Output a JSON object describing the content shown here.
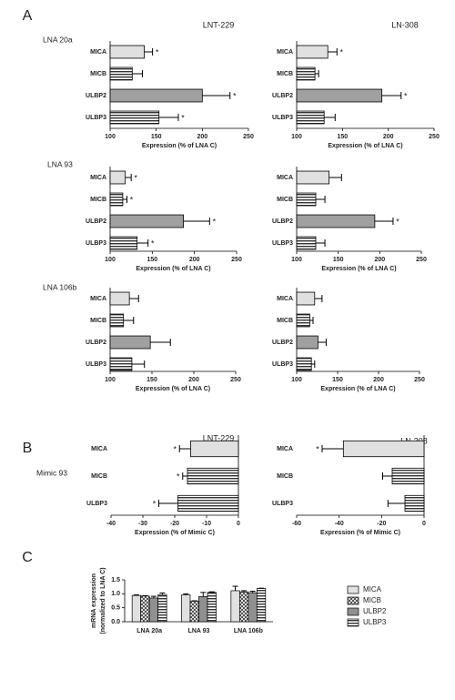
{
  "chart_data": [
    {
      "type": "hbar",
      "panel": "A",
      "title": "LNT-229",
      "row_label": "LNA 20a",
      "categories": [
        "MICA",
        "MICB",
        "ULBP2",
        "ULBP3"
      ],
      "values": [
        137,
        124,
        200,
        153
      ],
      "errors": [
        9,
        11,
        30,
        21
      ],
      "annotations": [
        "*",
        null,
        "*",
        "*"
      ],
      "colors": [
        "#e0e0e0",
        "#ffffff",
        "#a0a0a0",
        "#808080"
      ],
      "patterns": [
        "solid",
        "stripes",
        "solid",
        "stripes"
      ],
      "xlim": [
        100,
        250
      ],
      "xticks": [
        100,
        150,
        200,
        250
      ],
      "xlabel": "Expression (% of LNA C)"
    },
    {
      "type": "hbar",
      "title": "LN-308",
      "categories": [
        "MICA",
        "MICB",
        "ULBP2",
        "ULBP3"
      ],
      "values": [
        134,
        120,
        193,
        130
      ],
      "errors": [
        10,
        4,
        21,
        12
      ],
      "annotations": [
        "*",
        null,
        "*",
        null
      ],
      "colors": [
        "#e0e0e0",
        "#ffffff",
        "#a0a0a0",
        "#808080"
      ],
      "patterns": [
        "solid",
        "stripes",
        "solid",
        "stripes"
      ],
      "xlim": [
        100,
        250
      ],
      "xticks": [
        100,
        150,
        200,
        250
      ],
      "xlabel": "Expression (% of LNA C)"
    },
    {
      "type": "hbar",
      "row_label": "LNA 93",
      "categories": [
        "MICA",
        "MICB",
        "ULBP2",
        "ULBP3"
      ],
      "values": [
        118,
        115,
        187,
        132
      ],
      "errors": [
        7,
        5,
        31,
        13
      ],
      "annotations": [
        "*",
        "*",
        "*",
        "*"
      ],
      "colors": [
        "#e0e0e0",
        "#ffffff",
        "#a0a0a0",
        "#808080"
      ],
      "patterns": [
        "solid",
        "stripes",
        "solid",
        "stripes"
      ],
      "xlim": [
        100,
        250
      ],
      "xticks": [
        100,
        150,
        200,
        250
      ],
      "xlabel": "Expression (% of LNA C)"
    },
    {
      "type": "hbar",
      "categories": [
        "MICA",
        "MICB",
        "ULBP2",
        "ULBP3"
      ],
      "values": [
        139,
        123,
        194,
        123
      ],
      "errors": [
        15,
        11,
        22,
        11
      ],
      "annotations": [
        null,
        null,
        "*",
        null
      ],
      "colors": [
        "#e0e0e0",
        "#ffffff",
        "#a0a0a0",
        "#808080"
      ],
      "patterns": [
        "solid",
        "stripes",
        "solid",
        "stripes"
      ],
      "xlim": [
        100,
        250
      ],
      "xticks": [
        100,
        150,
        200,
        250
      ],
      "xlabel": "Expression (% of LNA C)"
    },
    {
      "type": "hbar",
      "row_label": "LNA 106b",
      "categories": [
        "MICA",
        "MICB",
        "ULBP2",
        "ULBP3"
      ],
      "values": [
        123,
        116,
        148,
        126
      ],
      "errors": [
        11,
        12,
        24,
        15
      ],
      "annotations": [
        null,
        null,
        null,
        null
      ],
      "colors": [
        "#e0e0e0",
        "#ffffff",
        "#a0a0a0",
        "#808080"
      ],
      "patterns": [
        "solid",
        "stripes",
        "solid",
        "stripes"
      ],
      "xlim": [
        100,
        250
      ],
      "xticks": [
        100,
        150,
        200,
        250
      ],
      "xlabel": "Expression (% of LNA C)"
    },
    {
      "type": "hbar",
      "categories": [
        "MICA",
        "MICB",
        "ULBP2",
        "ULBP3"
      ],
      "values": [
        122,
        116,
        126,
        118
      ],
      "errors": [
        9,
        4,
        10,
        4
      ],
      "annotations": [
        null,
        null,
        null,
        null
      ],
      "colors": [
        "#e0e0e0",
        "#ffffff",
        "#a0a0a0",
        "#808080"
      ],
      "patterns": [
        "solid",
        "stripes",
        "solid",
        "stripes"
      ],
      "xlim": [
        100,
        250
      ],
      "xticks": [
        100,
        150,
        200,
        250
      ],
      "xlabel": "Expression (% of LNA C)"
    },
    {
      "type": "hbar",
      "panel": "B",
      "title": "LNT-229",
      "row_label": "Mimic 93",
      "categories": [
        "MICA",
        "MICB",
        "ULBP3"
      ],
      "values": [
        -15,
        -16,
        -19
      ],
      "errors": [
        3.5,
        1.5,
        6
      ],
      "annotations": [
        "*",
        "*",
        "*"
      ],
      "colors": [
        "#e0e0e0",
        "#ffffff",
        "#808080"
      ],
      "patterns": [
        "solid",
        "stripes",
        "stripes"
      ],
      "xlim": [
        -40,
        0
      ],
      "xticks": [
        -40,
        -30,
        -20,
        -10,
        0
      ],
      "xlabel": "Expression (% of Mimic C)"
    },
    {
      "type": "hbar",
      "title": "LN-308",
      "categories": [
        "MICA",
        "MICB",
        "ULBP3"
      ],
      "values": [
        -38,
        -15,
        -9
      ],
      "errors": [
        10,
        4.5,
        8
      ],
      "annotations": [
        "*",
        null,
        null
      ],
      "colors": [
        "#e0e0e0",
        "#ffffff",
        "#808080"
      ],
      "patterns": [
        "solid",
        "stripes",
        "stripes"
      ],
      "xlim": [
        -60,
        0
      ],
      "xticks": [
        -60,
        -40,
        -20,
        0
      ],
      "xlabel": "Expression (% of Mimic C)"
    },
    {
      "type": "bar",
      "panel": "C",
      "categories": [
        "LNA 20a",
        "LNA 93",
        "LNA 106b"
      ],
      "ylabel": [
        "mRNA expression",
        "(normalized to LNA C)"
      ],
      "ylim": [
        0,
        1.5
      ],
      "yticks": [
        {
          "value": 0,
          "label": "0.0"
        },
        0.5,
        {
          "value": 1,
          "label": "1.0"
        },
        1.5
      ],
      "legend": "right",
      "series": [
        {
          "name": "MICA",
          "color": "#e0e0e0",
          "pattern": "solid",
          "values": [
            0.94,
            0.96,
            1.11
          ],
          "errors": [
            0.02,
            0.04,
            0.16
          ]
        },
        {
          "name": "MICB",
          "color": "#ffffff",
          "pattern": "checks",
          "values": [
            0.92,
            0.74,
            1.07
          ],
          "errors": [
            0.01,
            0.01,
            0.04
          ]
        },
        {
          "name": "ULBP2",
          "color": "#909090",
          "pattern": "solid",
          "values": [
            0.85,
            0.9,
            1.04
          ],
          "errors": [
            0.06,
            0.15,
            0.05
          ]
        },
        {
          "name": "ULBP3",
          "color": "#ffffff",
          "pattern": "stripes",
          "values": [
            0.97,
            1.05,
            1.19
          ],
          "errors": [
            0.06,
            0.02,
            0.01
          ]
        }
      ]
    }
  ]
}
